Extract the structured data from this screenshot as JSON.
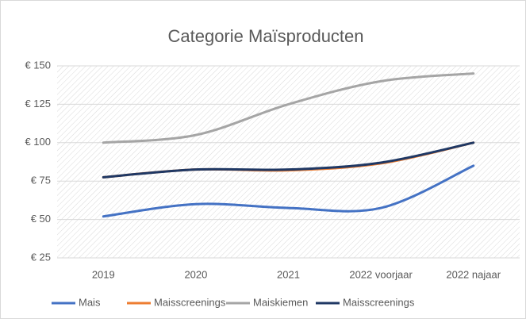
{
  "chart_data": {
    "type": "line",
    "title": "Categorie Maïsproducten",
    "categories": [
      "2019",
      "2020",
      "2021",
      "2022 voorjaar",
      "2022 najaar"
    ],
    "series": [
      {
        "name": "Mais",
        "color": "#4472c4",
        "values": [
          52,
          60,
          57.5,
          57.5,
          85
        ]
      },
      {
        "name": "Maisscreenings",
        "color": "#ed7d31",
        "values": [
          77.5,
          82.5,
          82,
          86.5,
          100
        ]
      },
      {
        "name": "Maiskiemen",
        "color": "#a5a5a5",
        "values": [
          100,
          105,
          125,
          140,
          145
        ]
      },
      {
        "name": "Maisscreenings",
        "color": "#1f3864",
        "values": [
          77.5,
          82.5,
          82.5,
          87,
          100
        ]
      }
    ],
    "ylim": [
      25,
      150
    ],
    "yticks": [
      {
        "value": 25,
        "label": "€ 25"
      },
      {
        "value": 50,
        "label": "€ 50"
      },
      {
        "value": 75,
        "label": "€ 75"
      },
      {
        "value": 100,
        "label": "€ 100"
      },
      {
        "value": 125,
        "label": "€ 125"
      },
      {
        "value": 150,
        "label": "€ 150"
      }
    ],
    "grid": true,
    "legend": "bottom",
    "smooth": true
  }
}
